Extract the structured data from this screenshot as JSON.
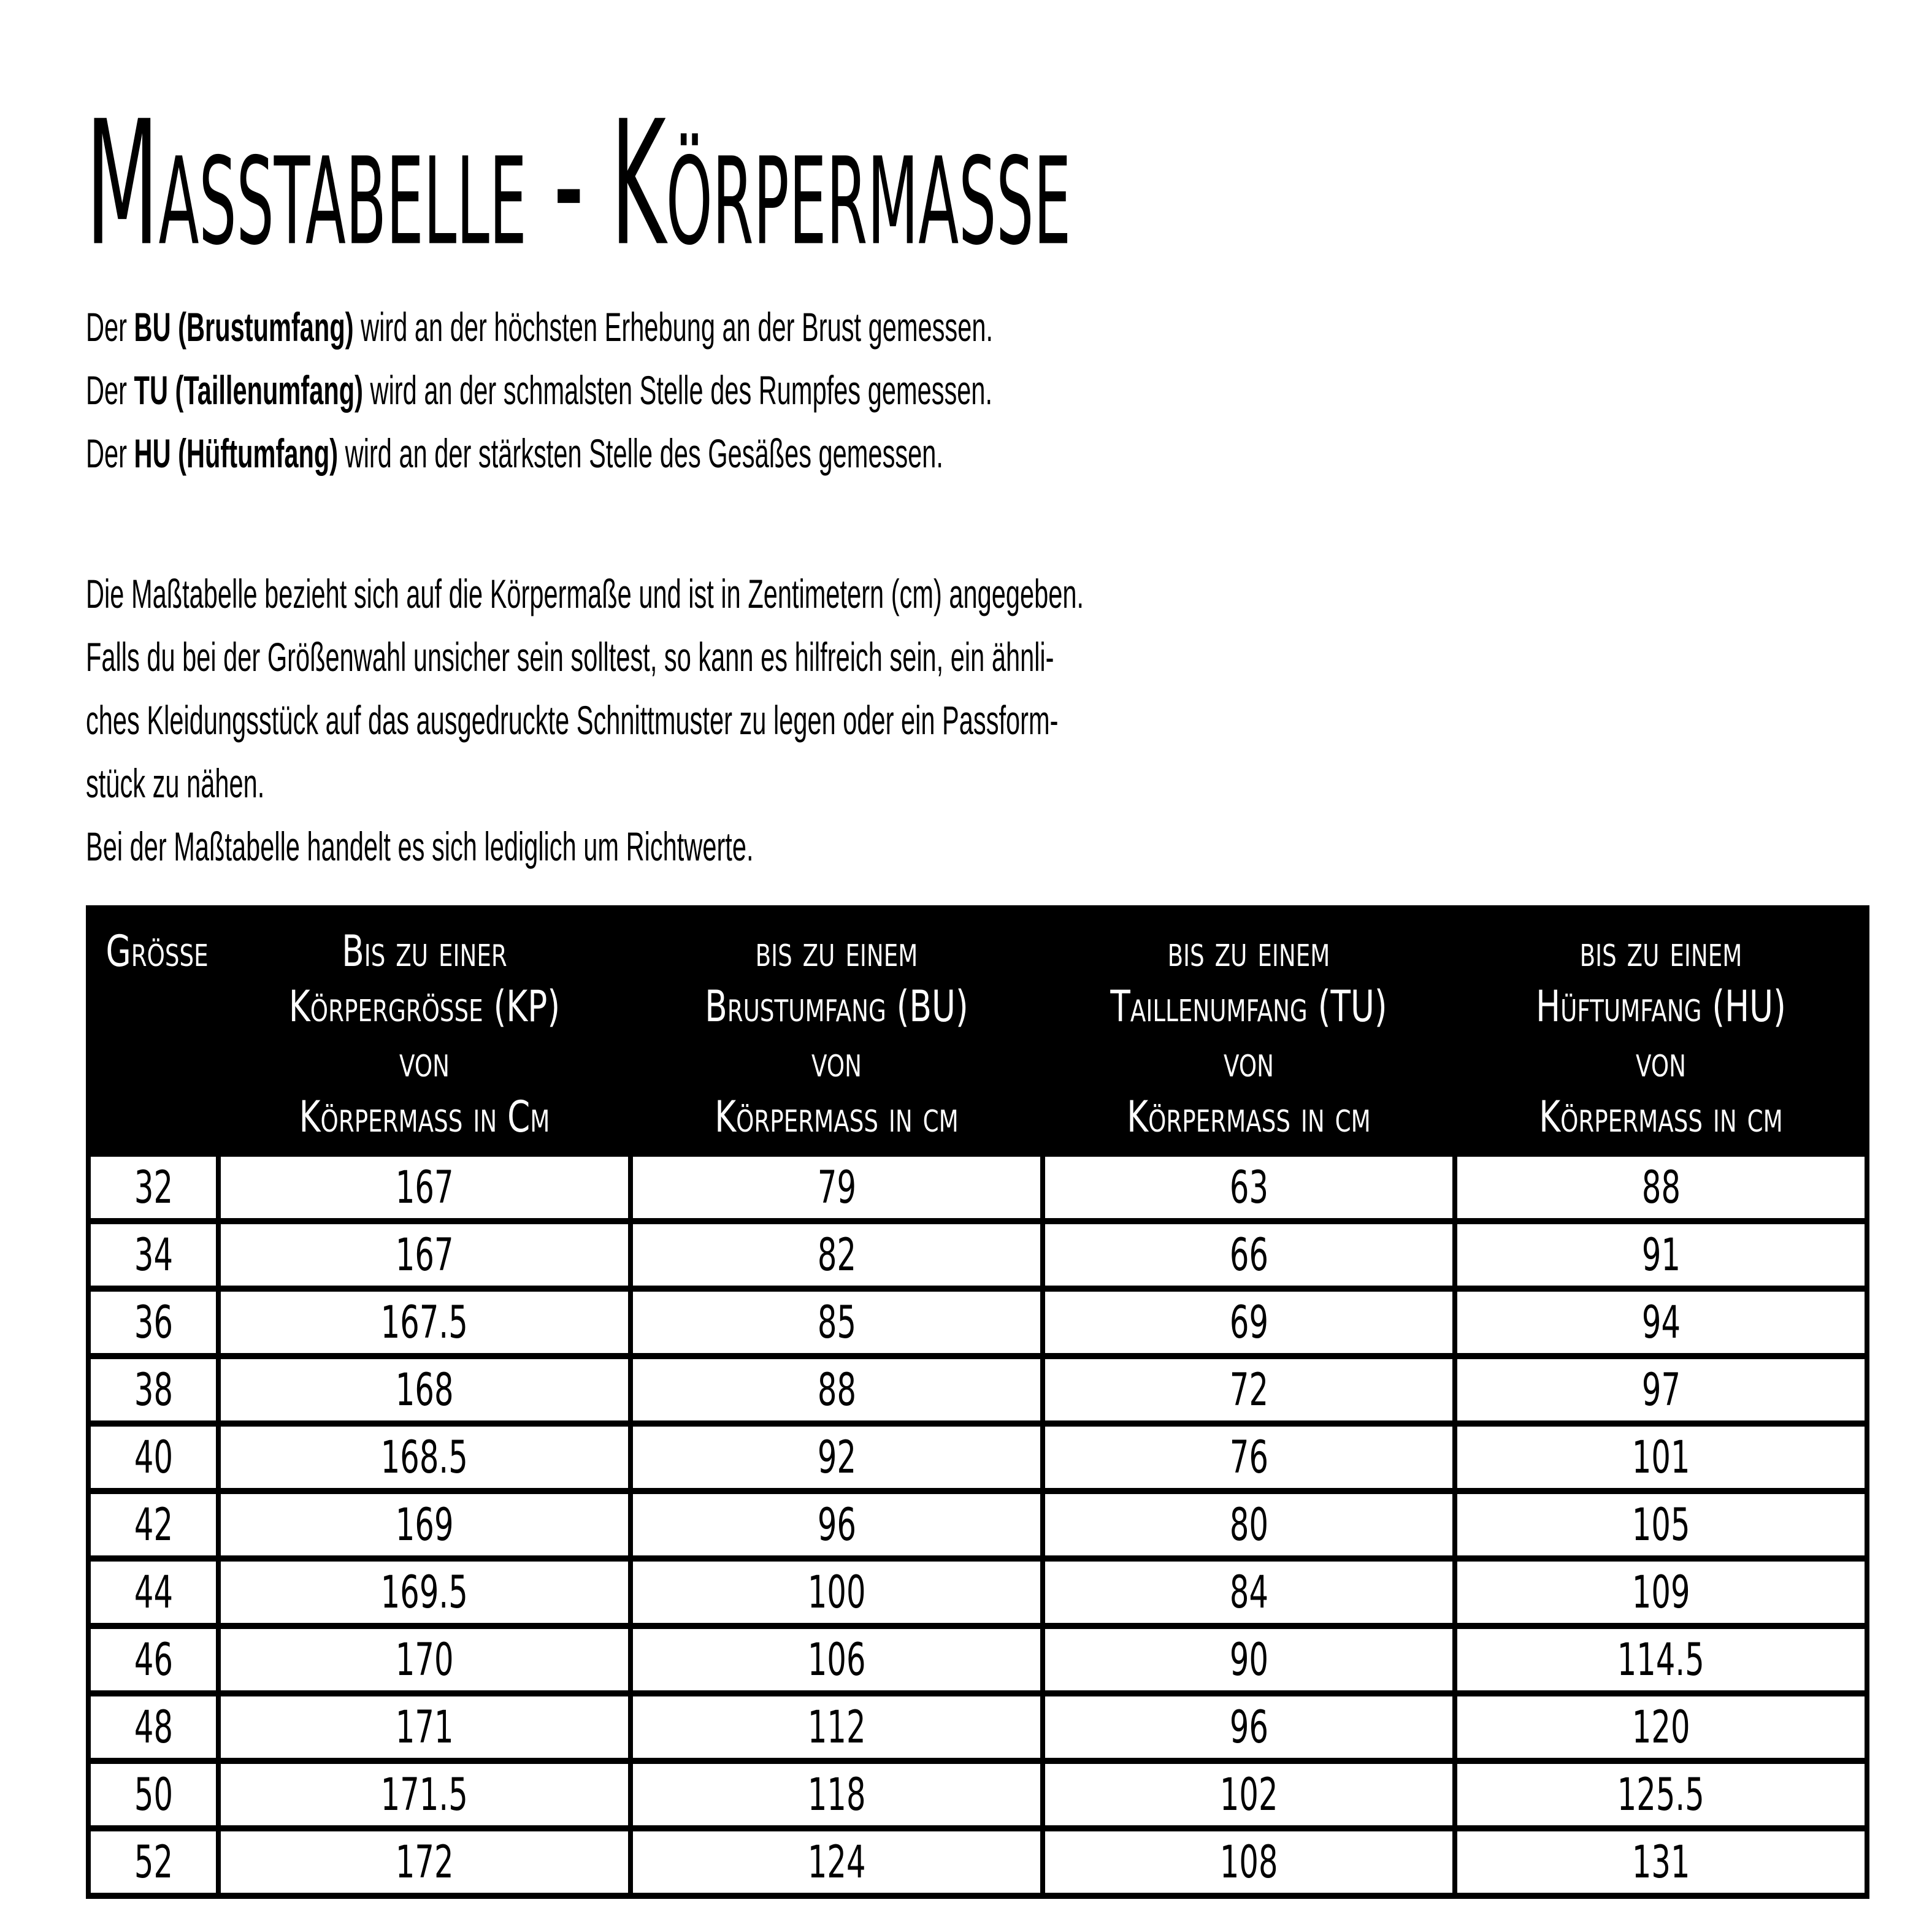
{
  "page": {
    "title": "Maßtabelle - Körpermaße"
  },
  "intro": {
    "lines": [
      {
        "prefix": "Der ",
        "bold": "BU (Brustumfang)",
        "rest": " wird an der höchsten Erhebung an der Brust gemessen."
      },
      {
        "prefix": "Der ",
        "bold": "TU (Taillenumfang)",
        "rest": " wird an der schmalsten Stelle des Rumpfes gemessen."
      },
      {
        "prefix": "Der ",
        "bold": "HU (Hüftumfang)",
        "rest": " wird an der stärksten Stelle des Gesäßes gemessen."
      }
    ]
  },
  "note": {
    "text": "Die Maßtabelle bezieht sich auf die Körpermaße und ist in Zentimetern (cm) angegeben.\nFalls du bei der Größenwahl unsicher sein solltest, so kann es hilfreich sein, ein ähnli-\nches Kleidungsstück auf das ausgedruckte Schnittmuster zu legen oder ein Passform-\nstück zu nähen.\nBei der Maßtabelle handelt es sich lediglich um Richtwerte."
  },
  "table": {
    "headers": [
      "Größe",
      "Bis zu einer\nKörpergröße (KP)\nvon\nKörpermaß in Cm",
      "bis zu einem\nBrustumfang (BU)\nvon\nKörpermaß in cm",
      "bis zu einem\nTaillenumfang (TU)\nvon\nKörpermaß in cm",
      "bis zu einem\nHüftumfang (HU)\nvon\nKörpermaß in cm"
    ],
    "rows": [
      [
        "32",
        "167",
        "79",
        "63",
        "88"
      ],
      [
        "34",
        "167",
        "82",
        "66",
        "91"
      ],
      [
        "36",
        "167.5",
        "85",
        "69",
        "94"
      ],
      [
        "38",
        "168",
        "88",
        "72",
        "97"
      ],
      [
        "40",
        "168.5",
        "92",
        "76",
        "101"
      ],
      [
        "42",
        "169",
        "96",
        "80",
        "105"
      ],
      [
        "44",
        "169.5",
        "100",
        "84",
        "109"
      ],
      [
        "46",
        "170",
        "106",
        "90",
        "114.5"
      ],
      [
        "48",
        "171",
        "112",
        "96",
        "120"
      ],
      [
        "50",
        "171.5",
        "118",
        "102",
        "125.5"
      ],
      [
        "52",
        "172",
        "124",
        "108",
        "131"
      ]
    ]
  },
  "colors": {
    "background": "#ffffff",
    "text": "#000000",
    "table_header_bg": "#000000",
    "table_header_text": "#ffffff",
    "table_border": "#000000"
  }
}
